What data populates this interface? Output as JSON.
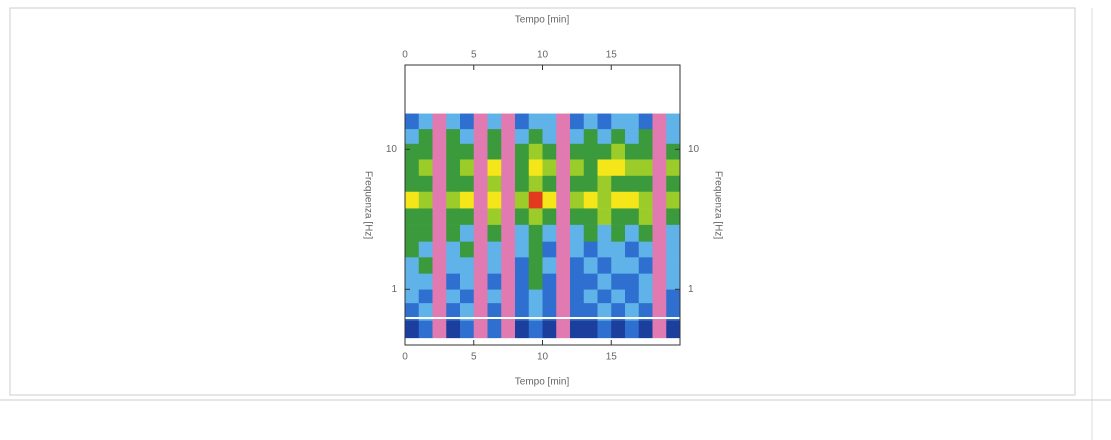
{
  "chart_data": {
    "type": "heatmap",
    "x_label": "Tempo [min]",
    "y_label": "Frequenza [Hz]",
    "x_bins": [
      0,
      1,
      2,
      3,
      4,
      5,
      6,
      7,
      8,
      9,
      10,
      11,
      12,
      13,
      14,
      15,
      16,
      17,
      18,
      19,
      20
    ],
    "y_bins": [
      0.45,
      0.6,
      0.8,
      1,
      1.3,
      1.7,
      2.2,
      2.9,
      3.8,
      5,
      6.5,
      8.5,
      11,
      14,
      18
    ],
    "xlim": [
      0,
      20
    ],
    "xticks": [
      0,
      5,
      10,
      15
    ],
    "ylim": [
      0.4,
      40
    ],
    "yticks": [
      1,
      10
    ],
    "y_log": true,
    "colormap": [
      "#1c3f9e",
      "#2f6fd0",
      "#5fb3e8",
      "#3a9a3c",
      "#9ccc2a",
      "#f5e61a",
      "#e23a1e"
    ],
    "missing_color": "#e07ab0",
    "values": [
      [
        0,
        1,
        null,
        0,
        1,
        null,
        1,
        null,
        0,
        1,
        0,
        null,
        0,
        0,
        1,
        0,
        1,
        0,
        null,
        0
      ],
      [
        1,
        2,
        null,
        1,
        2,
        null,
        1,
        null,
        1,
        2,
        1,
        null,
        1,
        1,
        2,
        1,
        2,
        1,
        null,
        1
      ],
      [
        2,
        1,
        null,
        2,
        1,
        null,
        2,
        null,
        1,
        2,
        1,
        null,
        1,
        2,
        1,
        2,
        1,
        2,
        null,
        1
      ],
      [
        2,
        2,
        null,
        1,
        2,
        null,
        1,
        null,
        1,
        3,
        1,
        null,
        1,
        1,
        2,
        1,
        1,
        2,
        null,
        2
      ],
      [
        2,
        3,
        null,
        2,
        2,
        null,
        2,
        null,
        1,
        3,
        2,
        null,
        1,
        2,
        1,
        2,
        2,
        1,
        null,
        2
      ],
      [
        3,
        2,
        null,
        2,
        3,
        null,
        2,
        null,
        2,
        3,
        1,
        null,
        2,
        1,
        2,
        2,
        1,
        2,
        null,
        2
      ],
      [
        3,
        3,
        null,
        3,
        2,
        null,
        3,
        null,
        2,
        3,
        2,
        null,
        2,
        3,
        2,
        3,
        2,
        3,
        null,
        2
      ],
      [
        3,
        3,
        null,
        3,
        3,
        null,
        4,
        null,
        3,
        4,
        3,
        null,
        3,
        3,
        4,
        3,
        3,
        4,
        null,
        3
      ],
      [
        5,
        4,
        null,
        4,
        5,
        null,
        5,
        null,
        4,
        6,
        5,
        null,
        4,
        5,
        4,
        5,
        5,
        4,
        null,
        4
      ],
      [
        3,
        3,
        null,
        3,
        3,
        null,
        4,
        null,
        3,
        4,
        3,
        null,
        3,
        3,
        4,
        3,
        3,
        3,
        null,
        3
      ],
      [
        3,
        4,
        null,
        3,
        4,
        null,
        5,
        null,
        3,
        5,
        4,
        null,
        4,
        3,
        5,
        5,
        4,
        4,
        null,
        4
      ],
      [
        3,
        3,
        null,
        3,
        3,
        null,
        3,
        null,
        3,
        4,
        3,
        null,
        3,
        3,
        3,
        4,
        3,
        3,
        null,
        3
      ],
      [
        2,
        3,
        null,
        3,
        2,
        null,
        3,
        null,
        2,
        3,
        2,
        null,
        2,
        3,
        2,
        3,
        2,
        3,
        null,
        2
      ],
      [
        1,
        2,
        null,
        2,
        1,
        null,
        2,
        null,
        1,
        2,
        2,
        null,
        1,
        2,
        1,
        2,
        2,
        1,
        null,
        2
      ]
    ]
  }
}
